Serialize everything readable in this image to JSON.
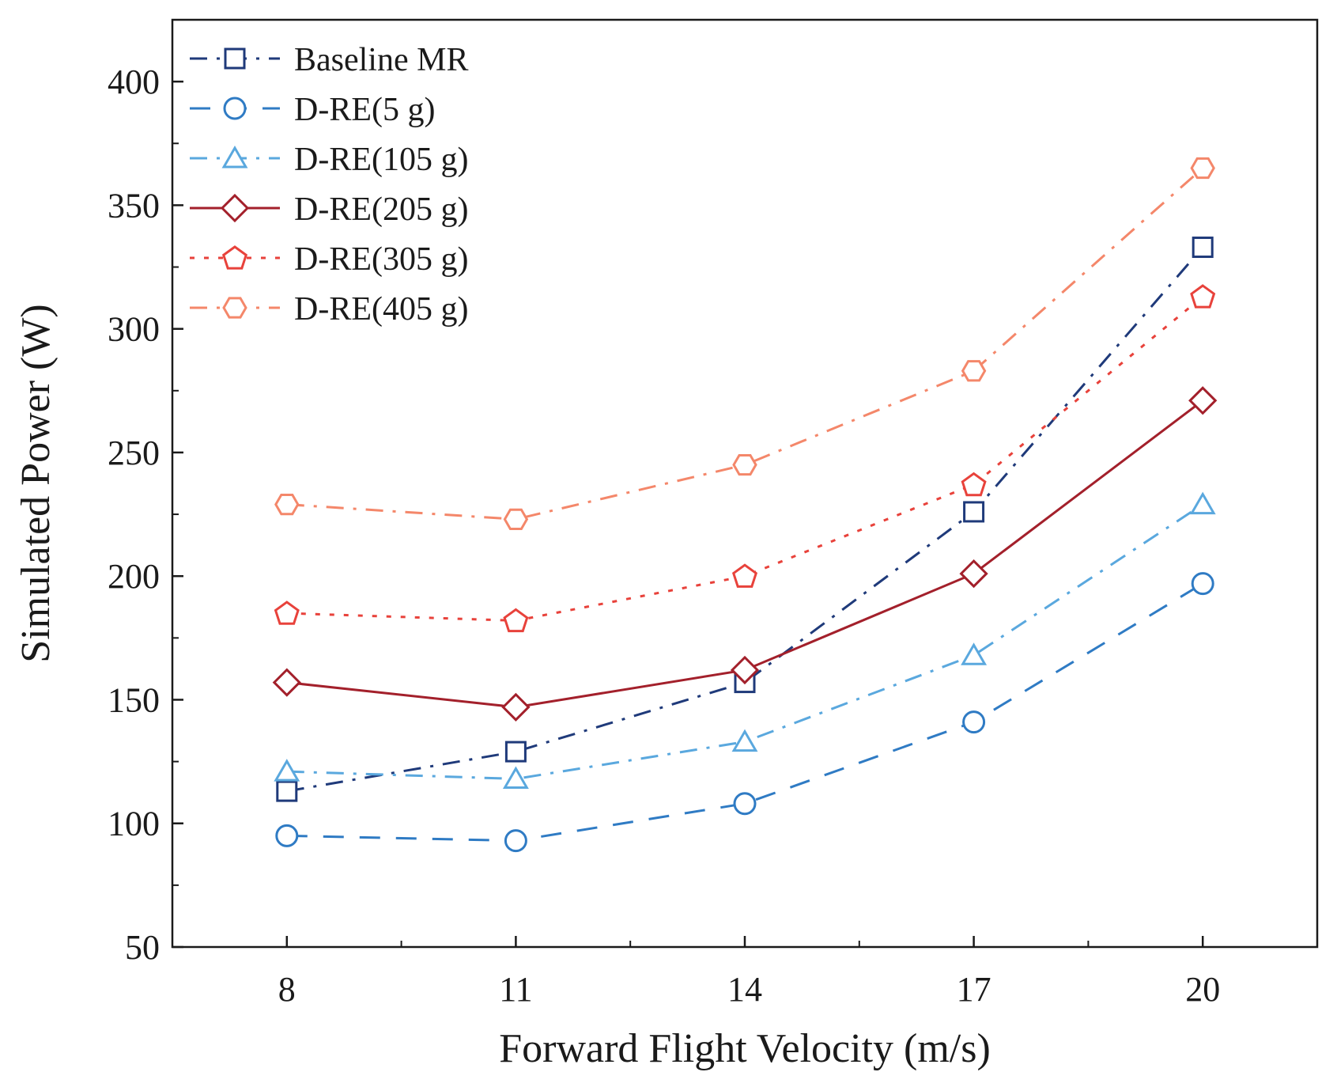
{
  "chart_data": {
    "type": "line",
    "title": "",
    "xlabel": "Forward Flight Velocity (m/s)",
    "ylabel": "Simulated Power (W)",
    "x": [
      8,
      11,
      14,
      17,
      20
    ],
    "xticks": [
      "8",
      "11",
      "14",
      "17",
      "20"
    ],
    "xlim": [
      6.5,
      21.5
    ],
    "ylim": [
      50,
      425
    ],
    "yticks": [
      "50",
      "100",
      "150",
      "200",
      "250",
      "300",
      "350",
      "400"
    ],
    "grid": false,
    "legend_position": "top-left",
    "series": [
      {
        "name": "Baseline MR",
        "marker": "square",
        "dash": "dashdot",
        "color": "#1f3a7a",
        "values": [
          113,
          129,
          157,
          226,
          333
        ]
      },
      {
        "name": "D-RE(5 g)",
        "marker": "circle",
        "dash": "dashed",
        "color": "#2f7bc4",
        "values": [
          95,
          93,
          108,
          141,
          197
        ]
      },
      {
        "name": "D-RE(105 g)",
        "marker": "triangle",
        "dash": "dashdot",
        "color": "#5aa8de",
        "values": [
          121,
          118,
          133,
          168,
          229
        ]
      },
      {
        "name": "D-RE(205 g)",
        "marker": "diamond",
        "dash": "solid",
        "color": "#a3202b",
        "values": [
          157,
          147,
          162,
          201,
          271
        ]
      },
      {
        "name": "D-RE(305 g)",
        "marker": "pentagon",
        "dash": "dotted",
        "color": "#e8423b",
        "values": [
          185,
          182,
          200,
          237,
          313
        ]
      },
      {
        "name": "D-RE(405 g)",
        "marker": "hexagon",
        "dash": "dashdot",
        "color": "#f4876a",
        "values": [
          229,
          223,
          245,
          283,
          365
        ]
      }
    ]
  }
}
